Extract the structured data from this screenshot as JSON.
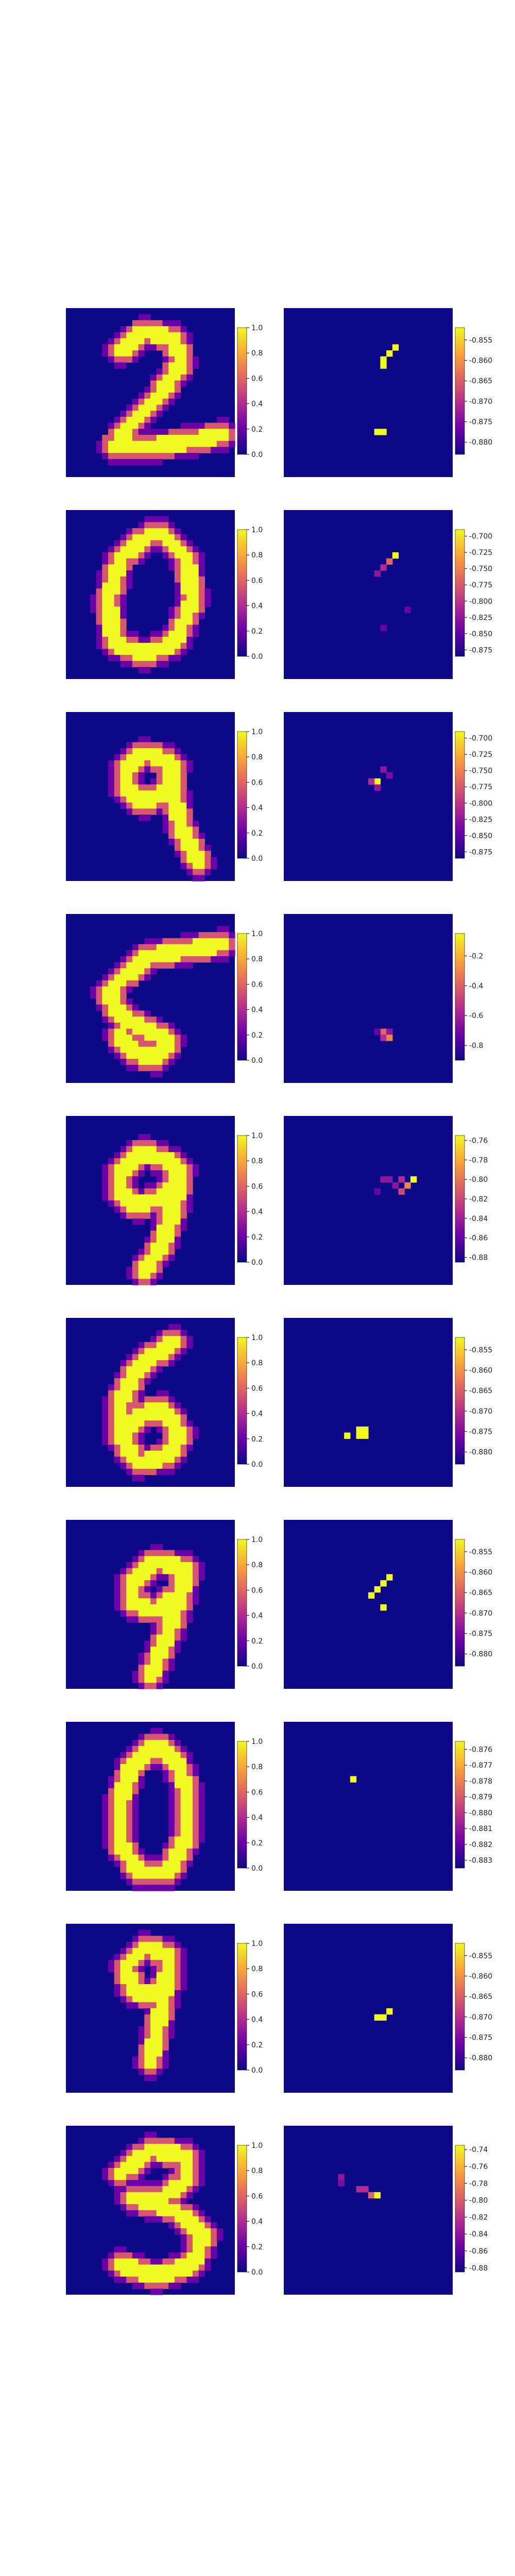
{
  "colormap": "plasma",
  "colors": {
    "background": "#ffffff",
    "colormap_stops": [
      "#0d0887",
      "#6a00a8",
      "#b12a90",
      "#e16462",
      "#fca636",
      "#f0f921"
    ]
  },
  "chart_data": [
    {
      "type": "heatmap",
      "digit": "2",
      "input": {
        "vmin": 0,
        "vmax": 1,
        "ticks": [
          "0.0",
          "0.2",
          "0.4",
          "0.6",
          "0.8",
          "1.0"
        ]
      },
      "attribution": {
        "vmin": -0.883,
        "vmax": -0.852,
        "ticks": [
          "-0.855",
          "-0.860",
          "-0.865",
          "-0.870",
          "-0.875",
          "-0.880"
        ],
        "hot_pixels": [
          [
            18,
            6,
            1
          ],
          [
            17,
            7,
            1
          ],
          [
            16,
            8,
            1
          ],
          [
            16,
            9,
            1
          ],
          [
            15,
            20,
            1
          ],
          [
            16,
            20,
            1
          ]
        ]
      }
    },
    {
      "type": "heatmap",
      "digit": "0",
      "input": {
        "vmin": 0,
        "vmax": 1,
        "ticks": [
          "0.0",
          "0.2",
          "0.4",
          "0.6",
          "0.8",
          "1.0"
        ]
      },
      "attribution": {
        "vmin": -0.885,
        "vmax": -0.69,
        "ticks": [
          "-0.700",
          "-0.725",
          "-0.750",
          "-0.775",
          "-0.800",
          "-0.825",
          "-0.850",
          "-0.875"
        ],
        "hot_pixels": [
          [
            18,
            7,
            1
          ],
          [
            17,
            8,
            0.6
          ],
          [
            16,
            9,
            0.4
          ],
          [
            15,
            10,
            0.3
          ],
          [
            20,
            16,
            0.2
          ],
          [
            16,
            19,
            0.2
          ]
        ]
      }
    },
    {
      "type": "heatmap",
      "digit": "9",
      "input": {
        "vmin": 0,
        "vmax": 1,
        "ticks": [
          "0.0",
          "0.2",
          "0.4",
          "0.6",
          "0.8",
          "1.0"
        ]
      },
      "attribution": {
        "vmin": -0.885,
        "vmax": -0.69,
        "ticks": [
          "-0.700",
          "-0.725",
          "-0.750",
          "-0.775",
          "-0.800",
          "-0.825",
          "-0.850",
          "-0.875"
        ],
        "hot_pixels": [
          [
            15,
            11,
            1
          ],
          [
            16,
            9,
            0.3
          ],
          [
            17,
            10,
            0.25
          ],
          [
            15,
            12,
            0.3
          ],
          [
            14,
            11,
            0.4
          ]
        ]
      }
    },
    {
      "type": "heatmap",
      "digit": "5",
      "input": {
        "vmin": 0,
        "vmax": 1,
        "ticks": [
          "0.0",
          "0.2",
          "0.4",
          "0.6",
          "0.8",
          "1.0"
        ]
      },
      "attribution": {
        "vmin": -0.9,
        "vmax": -0.05,
        "ticks": [
          "-0.2",
          "-0.4",
          "-0.6",
          "-0.8"
        ],
        "hot_pixels": [
          [
            16,
            19,
            0.6
          ],
          [
            17,
            19,
            0.3
          ],
          [
            16,
            20,
            0.4
          ],
          [
            17,
            20,
            0.7
          ],
          [
            15,
            19,
            0.2
          ]
        ]
      }
    },
    {
      "type": "heatmap",
      "digit": "9",
      "input": {
        "vmin": 0,
        "vmax": 1,
        "ticks": [
          "0.0",
          "0.2",
          "0.4",
          "0.6",
          "0.8",
          "1.0"
        ]
      },
      "attribution": {
        "vmin": -0.885,
        "vmax": -0.755,
        "ticks": [
          "-0.76",
          "-0.78",
          "-0.80",
          "-0.82",
          "-0.84",
          "-0.86",
          "-0.88"
        ],
        "hot_pixels": [
          [
            21,
            10,
            1
          ],
          [
            20,
            11,
            0.7
          ],
          [
            19,
            12,
            0.5
          ],
          [
            18,
            11,
            0.3
          ],
          [
            17,
            10,
            0.3
          ],
          [
            16,
            10,
            0.3
          ],
          [
            19,
            10,
            0.4
          ],
          [
            15,
            12,
            0.2
          ]
        ]
      }
    },
    {
      "type": "heatmap",
      "digit": "6",
      "input": {
        "vmin": 0,
        "vmax": 1,
        "ticks": [
          "0.0",
          "0.2",
          "0.4",
          "0.6",
          "0.8",
          "1.0"
        ]
      },
      "attribution": {
        "vmin": -0.883,
        "vmax": -0.852,
        "ticks": [
          "-0.855",
          "-0.860",
          "-0.865",
          "-0.870",
          "-0.875",
          "-0.880"
        ],
        "hot_pixels": [
          [
            12,
            18,
            1
          ],
          [
            13,
            18,
            1
          ],
          [
            12,
            19,
            1
          ],
          [
            13,
            19,
            1
          ],
          [
            10,
            19,
            1
          ]
        ]
      }
    },
    {
      "type": "heatmap",
      "digit": "9",
      "input": {
        "vmin": 0,
        "vmax": 1,
        "ticks": [
          "0.0",
          "0.2",
          "0.4",
          "0.6",
          "0.8",
          "1.0"
        ]
      },
      "attribution": {
        "vmin": -0.883,
        "vmax": -0.852,
        "ticks": [
          "-0.855",
          "-0.860",
          "-0.865",
          "-0.870",
          "-0.875",
          "-0.880"
        ],
        "hot_pixels": [
          [
            17,
            9,
            1
          ],
          [
            16,
            10,
            1
          ],
          [
            15,
            11,
            1
          ],
          [
            14,
            12,
            1
          ],
          [
            16,
            14,
            1
          ]
        ]
      }
    },
    {
      "type": "heatmap",
      "digit": "0",
      "input": {
        "vmin": 0,
        "vmax": 1,
        "ticks": [
          "0.0",
          "0.2",
          "0.4",
          "0.6",
          "0.8",
          "1.0"
        ]
      },
      "attribution": {
        "vmin": -0.8835,
        "vmax": -0.8755,
        "ticks": [
          "-0.876",
          "-0.877",
          "-0.878",
          "-0.879",
          "-0.880",
          "-0.881",
          "-0.882",
          "-0.883"
        ],
        "hot_pixels": [
          [
            11,
            9,
            1
          ]
        ]
      }
    },
    {
      "type": "heatmap",
      "digit": "9",
      "input": {
        "vmin": 0,
        "vmax": 1,
        "ticks": [
          "0.0",
          "0.2",
          "0.4",
          "0.6",
          "0.8",
          "1.0"
        ]
      },
      "attribution": {
        "vmin": -0.883,
        "vmax": -0.852,
        "ticks": [
          "-0.855",
          "-0.860",
          "-0.865",
          "-0.870",
          "-0.875",
          "-0.880"
        ],
        "hot_pixels": [
          [
            17,
            14,
            1
          ],
          [
            16,
            15,
            1
          ],
          [
            15,
            15,
            1
          ]
        ]
      }
    },
    {
      "type": "heatmap",
      "digit": "3",
      "input": {
        "vmin": 0,
        "vmax": 1,
        "ticks": [
          "0.0",
          "0.2",
          "0.4",
          "0.6",
          "0.8",
          "1.0"
        ]
      },
      "attribution": {
        "vmin": -0.885,
        "vmax": -0.735,
        "ticks": [
          "-0.74",
          "-0.76",
          "-0.78",
          "-0.80",
          "-0.82",
          "-0.84",
          "-0.86",
          "-0.88"
        ],
        "hot_pixels": [
          [
            9,
            8,
            0.3
          ],
          [
            9,
            9,
            0.25
          ],
          [
            12,
            10,
            0.4
          ],
          [
            13,
            10,
            0.4
          ],
          [
            14,
            11,
            0.6
          ],
          [
            15,
            11,
            1
          ]
        ]
      }
    }
  ]
}
